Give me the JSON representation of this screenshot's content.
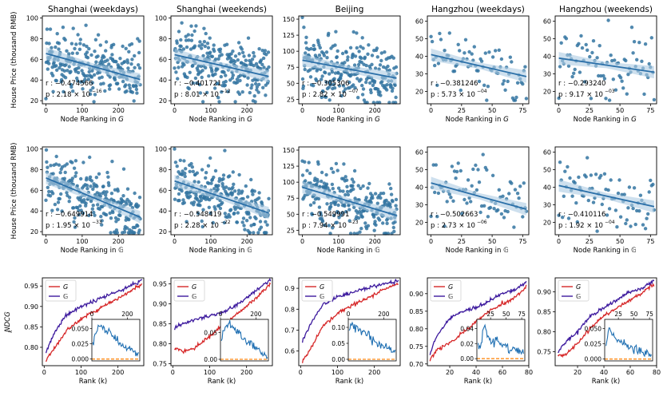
{
  "figure": {
    "ylabel_price": "House Price (thousand RMB)",
    "ylabel_ndcg": "NDCG",
    "ylabel_ndcg_sub": "k",
    "colors": {
      "point": "#3274a1",
      "line": "#2a6fa8",
      "band": "#aecbe3",
      "G": "#d62728",
      "Gcal": "#3d1a9e",
      "dash": "#ff8c1a",
      "inset": "#1f6fb2"
    }
  },
  "chart_data": [
    {
      "type": "scatter",
      "row": 1,
      "col": 1,
      "title": "Shanghai (weekdays)",
      "xlabel": "Node Ranking in",
      "xsym": "G",
      "xlim": [
        -10,
        270
      ],
      "ylim": [
        17,
        102
      ],
      "xticks": [
        0,
        100,
        200
      ],
      "yticks": [
        20,
        40,
        60,
        80,
        100
      ],
      "n": 260,
      "fit": [
        65.7,
        40.5
      ],
      "r_label": "r : −0.474566",
      "p_label": "p : 2.18 × 10",
      "p_exp": "−16"
    },
    {
      "type": "scatter",
      "row": 1,
      "col": 2,
      "title": "Shanghai (weekends)",
      "xlabel": "Node Ranking in",
      "xsym": "G",
      "xlim": [
        -10,
        270
      ],
      "ylim": [
        17,
        102
      ],
      "xticks": [
        0,
        100,
        200
      ],
      "yticks": [
        20,
        40,
        60,
        80,
        100
      ],
      "n": 260,
      "fit": [
        64.5,
        43.5
      ],
      "r_label": "r : −0.401721",
      "p_label": "p : 8.01 × 10",
      "p_exp": "−12"
    },
    {
      "type": "scatter",
      "row": 1,
      "col": 3,
      "title": "Beijing",
      "xlabel": "Node Ranking in",
      "xsym": "G",
      "xlim": [
        -10,
        270
      ],
      "ylim": [
        18,
        155
      ],
      "xticks": [
        0,
        100,
        200
      ],
      "yticks": [
        25,
        50,
        75,
        100,
        125,
        150
      ],
      "n": 260,
      "fit": [
        86.0,
        58.0
      ],
      "r_label": "r : −0.305306",
      "p_label": "p : 2.82 × 10",
      "p_exp": "−07"
    },
    {
      "type": "scatter",
      "row": 1,
      "col": 4,
      "title": "Hangzhou (weekdays)",
      "xlabel": "Node Ranking in",
      "xsym": "G",
      "xlim": [
        -3,
        80
      ],
      "ylim": [
        13,
        63
      ],
      "xticks": [
        0,
        25,
        50,
        75
      ],
      "yticks": [
        20,
        30,
        40,
        50,
        60
      ],
      "n": 78,
      "fit": [
        41.0,
        28.5
      ],
      "r_label": "r : −0.381246",
      "p_label": "p : 5.73 × 10",
      "p_exp": "−04"
    },
    {
      "type": "scatter",
      "row": 1,
      "col": 5,
      "title": "Hangzhou (weekends)",
      "xlabel": "Node Ranking in",
      "xsym": "G",
      "xlim": [
        -3,
        80
      ],
      "ylim": [
        13,
        63
      ],
      "xticks": [
        0,
        25,
        50,
        75
      ],
      "yticks": [
        20,
        30,
        40,
        50,
        60
      ],
      "n": 78,
      "fit": [
        39.0,
        31.0
      ],
      "r_label": "r : −0.293240",
      "p_label": "p : 9.17 × 10",
      "p_exp": "−03"
    },
    {
      "type": "scatter",
      "row": 2,
      "col": 1,
      "title": "",
      "xlabel": "Node Ranking in",
      "xsym": "𝔾",
      "xlim": [
        -10,
        270
      ],
      "ylim": [
        17,
        102
      ],
      "xticks": [
        0,
        100,
        200
      ],
      "yticks": [
        20,
        40,
        60,
        80,
        100
      ],
      "n": 260,
      "fit": [
        72.0,
        34.0
      ],
      "r_label": "r : −0.649914",
      "p_label": "p : 1.95 × 10",
      "p_exp": "−33"
    },
    {
      "type": "scatter",
      "row": 2,
      "col": 2,
      "title": "",
      "xlabel": "Node Ranking in",
      "xsym": "𝔾",
      "xlim": [
        -10,
        270
      ],
      "ylim": [
        17,
        102
      ],
      "xticks": [
        0,
        100,
        200
      ],
      "yticks": [
        20,
        40,
        60,
        80,
        100
      ],
      "n": 260,
      "fit": [
        69.0,
        38.0
      ],
      "r_label": "r : −0.548419",
      "p_label": "p : 2.28 × 10",
      "p_exp": "−22"
    },
    {
      "type": "scatter",
      "row": 2,
      "col": 3,
      "title": "",
      "xlabel": "Node Ranking in",
      "xsym": "𝔾",
      "xlim": [
        -10,
        270
      ],
      "ylim": [
        18,
        155
      ],
      "xticks": [
        0,
        100,
        200
      ],
      "yticks": [
        25,
        50,
        75,
        100,
        125,
        150
      ],
      "n": 260,
      "fit": [
        92.0,
        48.0
      ],
      "r_label": "r : −0.549991",
      "p_label": "p : 7.94 × 10",
      "p_exp": "−23"
    },
    {
      "type": "scatter",
      "row": 2,
      "col": 4,
      "title": "",
      "xlabel": "Node Ranking in",
      "xsym": "𝔾",
      "xlim": [
        -3,
        80
      ],
      "ylim": [
        13,
        63
      ],
      "xticks": [
        0,
        25,
        50,
        75
      ],
      "yticks": [
        20,
        30,
        40,
        50,
        60
      ],
      "n": 78,
      "fit": [
        42.5,
        27.5
      ],
      "r_label": "r : −0.502663",
      "p_label": "p : 2.73 × 10",
      "p_exp": "−06"
    },
    {
      "type": "scatter",
      "row": 2,
      "col": 5,
      "title": "",
      "xlabel": "Node Ranking in",
      "xsym": "𝔾",
      "xlim": [
        -3,
        80
      ],
      "ylim": [
        13,
        63
      ],
      "xticks": [
        0,
        25,
        50,
        75
      ],
      "yticks": [
        20,
        30,
        40,
        50,
        60
      ],
      "n": 78,
      "fit": [
        41.0,
        29.0
      ],
      "r_label": "r : −0.410116",
      "p_label": "p : 1.92 × 10",
      "p_exp": "−04"
    },
    {
      "type": "line",
      "row": 3,
      "col": 1,
      "xlabel": "Rank (k)",
      "legend": [
        "G",
        "𝔾"
      ],
      "xlim": [
        -5,
        270
      ],
      "ylim": [
        0.755,
        0.97
      ],
      "xticks": [
        0,
        100,
        200
      ],
      "yticks": [
        0.8,
        0.85,
        0.9,
        0.95
      ],
      "ytick_labels": [
        "0.80",
        "0.85",
        "0.90",
        "0.95"
      ],
      "series": [
        {
          "name": "G",
          "color": "G",
          "x": [
            5,
            30,
            60,
            100,
            140,
            180,
            220,
            265
          ],
          "y": [
            0.77,
            0.8,
            0.84,
            0.87,
            0.89,
            0.91,
            0.93,
            0.955
          ]
        },
        {
          "name": "𝔾",
          "color": "Gcal",
          "x": [
            5,
            30,
            60,
            100,
            140,
            180,
            220,
            265
          ],
          "y": [
            0.79,
            0.84,
            0.88,
            0.9,
            0.915,
            0.93,
            0.945,
            0.965
          ]
        }
      ],
      "inset": {
        "xlim": [
          0,
          270
        ],
        "ylim": [
          -0.003,
          0.065
        ],
        "xticks": [
          0,
          200
        ],
        "yticks": [
          0.0,
          0.025,
          0.05
        ],
        "ytick_labels": [
          "0.000",
          "0.025",
          "0.050"
        ],
        "x": [
          5,
          20,
          40,
          60,
          80,
          100,
          120,
          140,
          160,
          180,
          200,
          220,
          240,
          265
        ],
        "y": [
          0.02,
          0.04,
          0.055,
          0.05,
          0.045,
          0.05,
          0.035,
          0.03,
          0.025,
          0.02,
          0.018,
          0.015,
          0.01,
          0.008
        ]
      }
    },
    {
      "type": "line",
      "row": 3,
      "col": 2,
      "xlabel": "Rank (k)",
      "legend": [
        "G",
        "𝔾"
      ],
      "xlim": [
        -5,
        270
      ],
      "ylim": [
        0.745,
        0.965
      ],
      "xticks": [
        0,
        100,
        200
      ],
      "yticks": [
        0.75,
        0.8,
        0.85,
        0.9,
        0.95
      ],
      "ytick_labels": [
        "0.75",
        "0.80",
        "0.85",
        "0.90",
        "0.95"
      ],
      "series": [
        {
          "name": "G",
          "color": "G",
          "x": [
            5,
            30,
            60,
            100,
            140,
            180,
            220,
            265
          ],
          "y": [
            0.79,
            0.78,
            0.79,
            0.82,
            0.85,
            0.88,
            0.91,
            0.95
          ]
        },
        {
          "name": "𝔾",
          "color": "Gcal",
          "x": [
            5,
            30,
            60,
            100,
            140,
            180,
            220,
            265
          ],
          "y": [
            0.84,
            0.85,
            0.86,
            0.87,
            0.88,
            0.9,
            0.93,
            0.96
          ]
        }
      ],
      "inset": {
        "xlim": [
          0,
          270
        ],
        "ylim": [
          -0.003,
          0.075
        ],
        "xticks": [
          0,
          200
        ],
        "yticks": [
          0.0,
          0.05
        ],
        "ytick_labels": [
          "0.00",
          "0.05"
        ],
        "x": [
          5,
          20,
          40,
          60,
          80,
          100,
          120,
          140,
          160,
          180,
          200,
          220,
          240,
          265
        ],
        "y": [
          0.04,
          0.05,
          0.065,
          0.06,
          0.055,
          0.05,
          0.04,
          0.035,
          0.03,
          0.03,
          0.02,
          0.015,
          0.01,
          0.005
        ]
      }
    },
    {
      "type": "line",
      "row": 3,
      "col": 3,
      "xlabel": "Rank (k)",
      "legend": [
        "G",
        "𝔾"
      ],
      "xlim": [
        -5,
        270
      ],
      "ylim": [
        0.53,
        0.95
      ],
      "xticks": [
        0,
        100,
        200
      ],
      "yticks": [
        0.6,
        0.7,
        0.8,
        0.9
      ],
      "ytick_labels": [
        "0.6",
        "0.7",
        "0.8",
        "0.9"
      ],
      "series": [
        {
          "name": "G",
          "color": "G",
          "x": [
            5,
            30,
            60,
            100,
            140,
            180,
            220,
            265
          ],
          "y": [
            0.55,
            0.62,
            0.72,
            0.78,
            0.82,
            0.85,
            0.89,
            0.92
          ]
        },
        {
          "name": "𝔾",
          "color": "Gcal",
          "x": [
            5,
            30,
            60,
            100,
            140,
            180,
            220,
            265
          ],
          "y": [
            0.65,
            0.74,
            0.82,
            0.86,
            0.88,
            0.9,
            0.92,
            0.935
          ]
        }
      ],
      "inset": {
        "xlim": [
          0,
          270
        ],
        "ylim": [
          -0.005,
          0.125
        ],
        "xticks": [
          0,
          200
        ],
        "yticks": [
          0.0,
          0.05,
          0.1
        ],
        "ytick_labels": [
          "0.00",
          "0.05",
          "0.10"
        ],
        "x": [
          5,
          20,
          40,
          60,
          80,
          100,
          120,
          140,
          160,
          180,
          200,
          220,
          240,
          265
        ],
        "y": [
          0.1,
          0.11,
          0.1,
          0.095,
          0.09,
          0.085,
          0.07,
          0.06,
          0.05,
          0.045,
          0.04,
          0.035,
          0.03,
          0.02
        ]
      }
    },
    {
      "type": "line",
      "row": 3,
      "col": 4,
      "xlabel": "Rank (k)",
      "legend": [
        "G",
        "𝔾"
      ],
      "xlim": [
        3,
        80
      ],
      "ylim": [
        0.695,
        0.945
      ],
      "xticks": [
        20,
        40,
        60,
        80
      ],
      "yticks": [
        0.7,
        0.75,
        0.8,
        0.85,
        0.9
      ],
      "ytick_labels": [
        "0.70",
        "0.75",
        "0.80",
        "0.85",
        "0.90"
      ],
      "series": [
        {
          "name": "G",
          "color": "G",
          "x": [
            5,
            10,
            20,
            30,
            40,
            50,
            60,
            70,
            78
          ],
          "y": [
            0.71,
            0.74,
            0.76,
            0.79,
            0.82,
            0.85,
            0.87,
            0.89,
            0.92
          ]
        },
        {
          "name": "𝔾",
          "color": "Gcal",
          "x": [
            5,
            10,
            20,
            30,
            40,
            50,
            60,
            70,
            78
          ],
          "y": [
            0.73,
            0.78,
            0.83,
            0.85,
            0.86,
            0.88,
            0.9,
            0.91,
            0.935
          ]
        }
      ],
      "inset": {
        "xlim": [
          3,
          80
        ],
        "ylim": [
          -0.003,
          0.052
        ],
        "xticks": [
          25,
          50,
          75
        ],
        "yticks": [
          0.0,
          0.02,
          0.04
        ],
        "ytick_labels": [
          "0.00",
          "0.02",
          "0.04"
        ],
        "x": [
          5,
          10,
          15,
          20,
          25,
          30,
          35,
          40,
          45,
          50,
          55,
          60,
          65,
          70,
          78
        ],
        "y": [
          0.015,
          0.02,
          0.045,
          0.03,
          0.025,
          0.02,
          0.03,
          0.02,
          0.015,
          0.02,
          0.01,
          0.015,
          0.012,
          0.01,
          0.008
        ]
      }
    },
    {
      "type": "line",
      "row": 3,
      "col": 5,
      "xlabel": "Rank (k)",
      "legend": [
        "G",
        "𝔾"
      ],
      "xlim": [
        3,
        80
      ],
      "ylim": [
        0.715,
        0.935
      ],
      "xticks": [
        20,
        40,
        60,
        80
      ],
      "yticks": [
        0.75,
        0.8,
        0.85,
        0.9
      ],
      "ytick_labels": [
        "0.75",
        "0.80",
        "0.85",
        "0.90"
      ],
      "series": [
        {
          "name": "G",
          "color": "G",
          "x": [
            5,
            10,
            20,
            30,
            40,
            50,
            60,
            70,
            78
          ],
          "y": [
            0.74,
            0.74,
            0.77,
            0.81,
            0.84,
            0.86,
            0.88,
            0.9,
            0.92
          ]
        },
        {
          "name": "𝔾",
          "color": "Gcal",
          "x": [
            5,
            10,
            20,
            30,
            40,
            50,
            60,
            70,
            78
          ],
          "y": [
            0.75,
            0.77,
            0.8,
            0.84,
            0.86,
            0.88,
            0.9,
            0.91,
            0.93
          ]
        }
      ],
      "inset": {
        "xlim": [
          3,
          80
        ],
        "ylim": [
          -0.003,
          0.065
        ],
        "xticks": [
          25,
          50,
          75
        ],
        "yticks": [
          0.0,
          0.025,
          0.05
        ],
        "ytick_labels": [
          "0.000",
          "0.025",
          "0.050"
        ],
        "x": [
          5,
          10,
          15,
          20,
          25,
          30,
          35,
          40,
          45,
          50,
          55,
          60,
          65,
          70,
          78
        ],
        "y": [
          0.02,
          0.055,
          0.04,
          0.035,
          0.03,
          0.03,
          0.025,
          0.02,
          0.02,
          0.015,
          0.015,
          0.012,
          0.01,
          0.01,
          0.008
        ]
      }
    }
  ]
}
